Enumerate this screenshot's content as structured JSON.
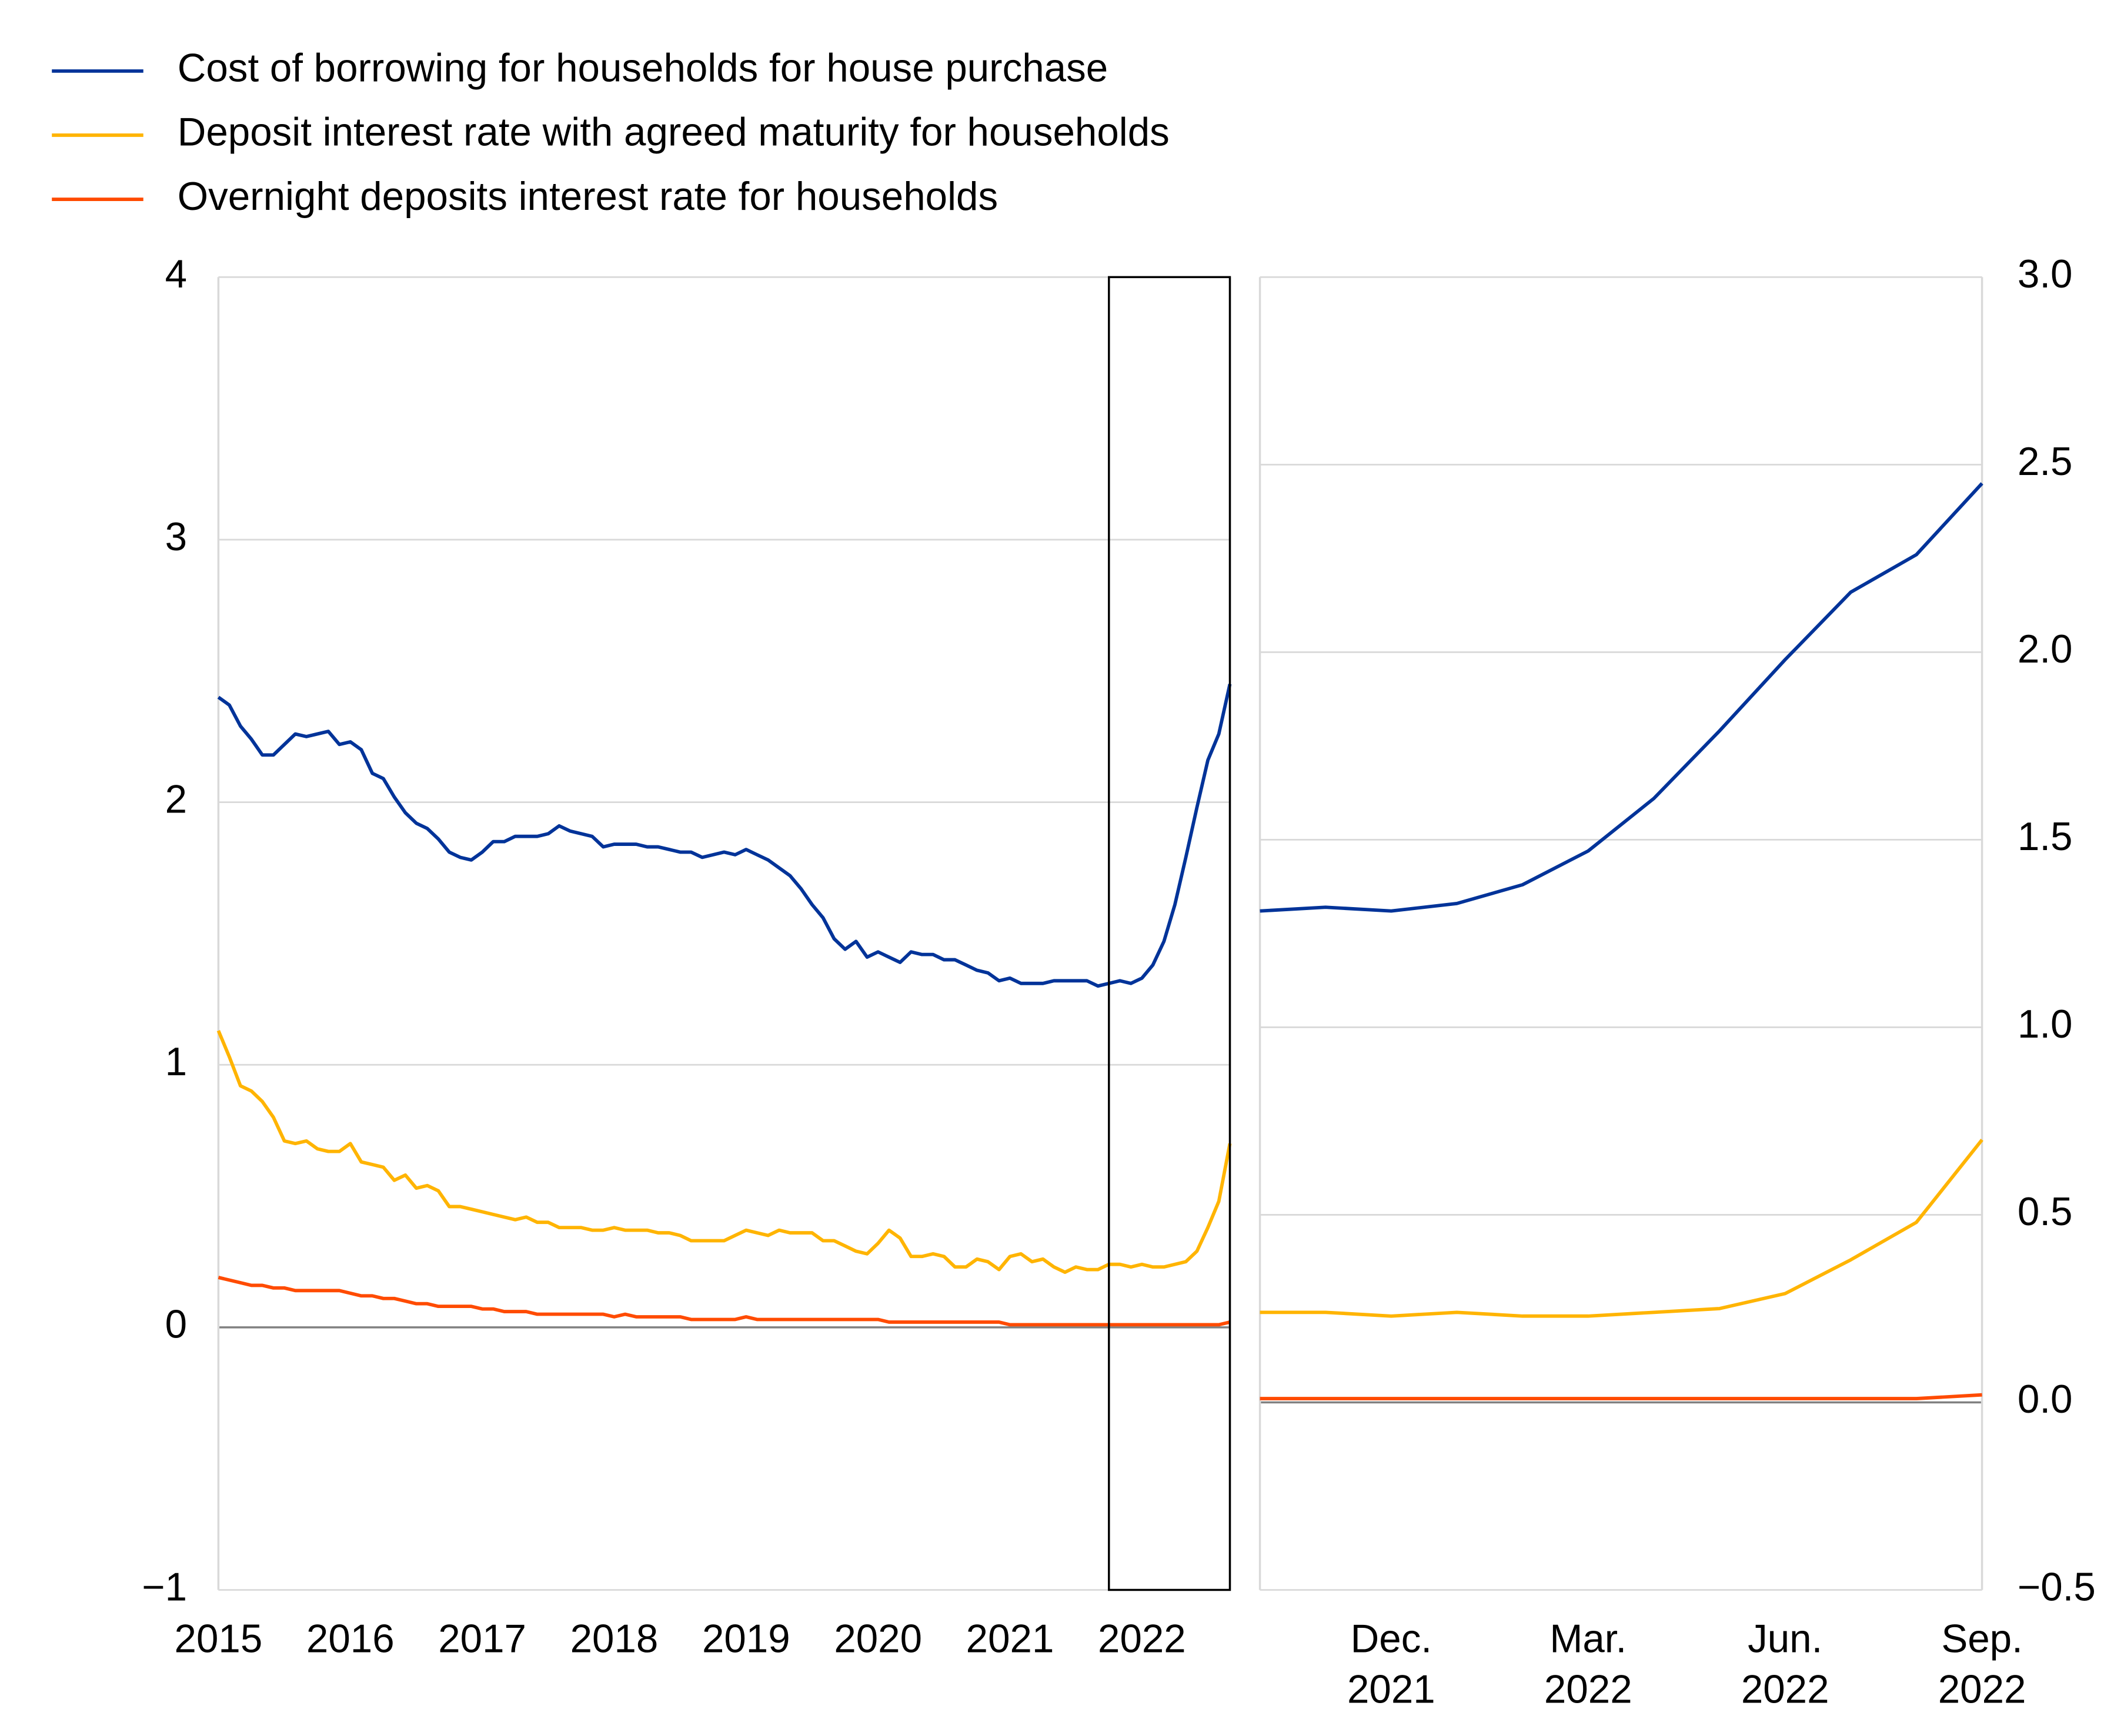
{
  "chart_data": [
    {
      "type": "line",
      "x": [
        2015,
        2015.083,
        2015.167,
        2015.25,
        2015.333,
        2015.417,
        2015.5,
        2015.583,
        2015.667,
        2015.75,
        2015.833,
        2015.917,
        2016,
        2016.083,
        2016.167,
        2016.25,
        2016.333,
        2016.417,
        2016.5,
        2016.583,
        2016.667,
        2016.75,
        2016.833,
        2016.917,
        2017,
        2017.083,
        2017.167,
        2017.25,
        2017.333,
        2017.417,
        2017.5,
        2017.583,
        2017.667,
        2017.75,
        2017.833,
        2017.917,
        2018,
        2018.083,
        2018.167,
        2018.25,
        2018.333,
        2018.417,
        2018.5,
        2018.583,
        2018.667,
        2018.75,
        2018.833,
        2018.917,
        2019,
        2019.083,
        2019.167,
        2019.25,
        2019.333,
        2019.417,
        2019.5,
        2019.583,
        2019.667,
        2019.75,
        2019.833,
        2019.917,
        2020,
        2020.083,
        2020.167,
        2020.25,
        2020.333,
        2020.417,
        2020.5,
        2020.583,
        2020.667,
        2020.75,
        2020.833,
        2020.917,
        2021,
        2021.083,
        2021.167,
        2021.25,
        2021.333,
        2021.417,
        2021.5,
        2021.583,
        2021.667,
        2021.75,
        2021.833,
        2021.917,
        2022,
        2022.083,
        2022.167,
        2022.25,
        2022.333,
        2022.417,
        2022.5,
        2022.583,
        2022.667
      ],
      "series": [
        {
          "name": "Cost of borrowing for households for house purchase",
          "color": "#003399",
          "values": [
            2.4,
            2.37,
            2.29,
            2.24,
            2.18,
            2.18,
            2.22,
            2.26,
            2.25,
            2.26,
            2.27,
            2.22,
            2.23,
            2.2,
            2.11,
            2.09,
            2.02,
            1.96,
            1.92,
            1.9,
            1.86,
            1.81,
            1.79,
            1.78,
            1.81,
            1.85,
            1.85,
            1.87,
            1.87,
            1.87,
            1.88,
            1.91,
            1.89,
            1.88,
            1.87,
            1.83,
            1.84,
            1.84,
            1.84,
            1.83,
            1.83,
            1.82,
            1.81,
            1.81,
            1.79,
            1.8,
            1.81,
            1.8,
            1.82,
            1.8,
            1.78,
            1.75,
            1.72,
            1.67,
            1.61,
            1.56,
            1.48,
            1.44,
            1.47,
            1.41,
            1.43,
            1.41,
            1.39,
            1.43,
            1.42,
            1.42,
            1.4,
            1.4,
            1.38,
            1.36,
            1.35,
            1.32,
            1.33,
            1.31,
            1.31,
            1.31,
            1.32,
            1.32,
            1.32,
            1.32,
            1.3,
            1.31,
            1.32,
            1.31,
            1.33,
            1.38,
            1.47,
            1.61,
            1.79,
            1.98,
            2.16,
            2.26,
            2.45
          ]
        },
        {
          "name": "Deposit interest rate with agreed maturity for households",
          "color": "#ffb400",
          "values": [
            1.13,
            1.03,
            0.92,
            0.9,
            0.86,
            0.8,
            0.71,
            0.7,
            0.71,
            0.68,
            0.67,
            0.67,
            0.7,
            0.63,
            0.62,
            0.61,
            0.56,
            0.58,
            0.53,
            0.54,
            0.52,
            0.46,
            0.46,
            0.45,
            0.44,
            0.43,
            0.42,
            0.41,
            0.42,
            0.4,
            0.4,
            0.38,
            0.38,
            0.38,
            0.37,
            0.37,
            0.38,
            0.37,
            0.37,
            0.37,
            0.36,
            0.36,
            0.35,
            0.33,
            0.33,
            0.33,
            0.33,
            0.35,
            0.37,
            0.36,
            0.35,
            0.37,
            0.36,
            0.36,
            0.36,
            0.33,
            0.33,
            0.31,
            0.29,
            0.28,
            0.32,
            0.37,
            0.34,
            0.27,
            0.27,
            0.28,
            0.27,
            0.23,
            0.23,
            0.26,
            0.25,
            0.22,
            0.27,
            0.28,
            0.25,
            0.26,
            0.23,
            0.21,
            0.23,
            0.22,
            0.22,
            0.24,
            0.24,
            0.23,
            0.24,
            0.23,
            0.23,
            0.24,
            0.25,
            0.29,
            0.38,
            0.48,
            0.7
          ]
        },
        {
          "name": "Overnight deposits interest rate for households",
          "color": "#ff4b00",
          "values": [
            0.19,
            0.18,
            0.17,
            0.16,
            0.16,
            0.15,
            0.15,
            0.14,
            0.14,
            0.14,
            0.14,
            0.14,
            0.13,
            0.12,
            0.12,
            0.11,
            0.11,
            0.1,
            0.09,
            0.09,
            0.08,
            0.08,
            0.08,
            0.08,
            0.07,
            0.07,
            0.06,
            0.06,
            0.06,
            0.05,
            0.05,
            0.05,
            0.05,
            0.05,
            0.05,
            0.05,
            0.04,
            0.05,
            0.04,
            0.04,
            0.04,
            0.04,
            0.04,
            0.03,
            0.03,
            0.03,
            0.03,
            0.03,
            0.04,
            0.03,
            0.03,
            0.03,
            0.03,
            0.03,
            0.03,
            0.03,
            0.03,
            0.03,
            0.03,
            0.03,
            0.03,
            0.02,
            0.02,
            0.02,
            0.02,
            0.02,
            0.02,
            0.02,
            0.02,
            0.02,
            0.02,
            0.02,
            0.01,
            0.01,
            0.01,
            0.01,
            0.01,
            0.01,
            0.01,
            0.01,
            0.01,
            0.01,
            0.01,
            0.01,
            0.01,
            0.01,
            0.01,
            0.01,
            0.01,
            0.01,
            0.01,
            0.01,
            0.02
          ]
        }
      ],
      "xlim": [
        2015,
        2022.667
      ],
      "xticks": [
        2015,
        2016,
        2017,
        2018,
        2019,
        2020,
        2021,
        2022
      ],
      "ylim": [
        -1,
        4
      ],
      "yticks": [
        {
          "value": -1,
          "label": "−1"
        },
        0,
        1,
        2,
        3,
        4
      ],
      "grid": true
    },
    {
      "type": "line",
      "categories": [
        null,
        null,
        "Dec. 2021",
        null,
        null,
        "Mar. 2022",
        null,
        null,
        "Jun. 2022",
        null,
        null,
        "Sep. 2022"
      ],
      "series": [
        {
          "color": "#003399",
          "values": [
            1.31,
            1.32,
            1.31,
            1.33,
            1.38,
            1.47,
            1.61,
            1.79,
            1.98,
            2.16,
            2.26,
            2.45
          ]
        },
        {
          "color": "#ffb400",
          "values": [
            0.24,
            0.24,
            0.23,
            0.24,
            0.23,
            0.23,
            0.24,
            0.25,
            0.29,
            0.38,
            0.48,
            0.7
          ]
        },
        {
          "color": "#ff4b00",
          "values": [
            0.01,
            0.01,
            0.01,
            0.01,
            0.01,
            0.01,
            0.01,
            0.01,
            0.01,
            0.01,
            0.01,
            0.02
          ]
        }
      ],
      "ylim": [
        -0.5,
        3.0
      ],
      "yticks": [
        {
          "value": -0.5,
          "label": "−0.5"
        },
        {
          "value": 0,
          "label": "0.0"
        },
        0.5,
        {
          "value": 1,
          "label": "1.0"
        },
        1.5,
        {
          "value": 2,
          "label": "2.0"
        },
        2.5,
        {
          "value": 3,
          "label": "3.0"
        }
      ],
      "grid": true
    }
  ]
}
